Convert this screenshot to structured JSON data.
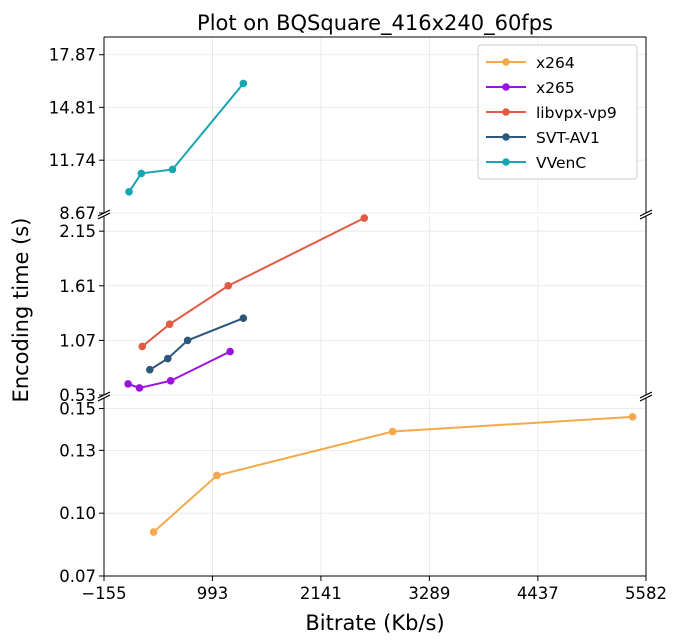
{
  "chart_data": {
    "type": "line",
    "title": "Plot on BQSquare_416x240_60fps",
    "xlabel": "Bitrate (Kb/s)",
    "ylabel": "Encoding time (s)",
    "xlim": [
      -155,
      5582
    ],
    "x_ticks": [
      "−155",
      "993",
      "2141",
      "3289",
      "4437",
      "5582"
    ],
    "x_tick_values": [
      -155,
      993,
      2141,
      3289,
      4437,
      5582
    ],
    "broken_y_axis": true,
    "grid": true,
    "legend_position": "top-right",
    "panels": [
      {
        "name": "top",
        "ylim": [
          8.67,
          18.9
        ],
        "y_ticks": [
          "8.67",
          "11.74",
          "14.81",
          "17.87"
        ],
        "y_tick_values": [
          8.67,
          11.74,
          14.81,
          17.87
        ]
      },
      {
        "name": "middle",
        "ylim": [
          0.53,
          2.3
        ],
        "y_ticks": [
          "0.53",
          "1.07",
          "1.61",
          "2.15"
        ],
        "y_tick_values": [
          0.53,
          1.07,
          1.61,
          2.15
        ]
      },
      {
        "name": "bottom",
        "ylim": [
          0.07,
          0.155
        ],
        "y_ticks": [
          "0.07",
          "0.10",
          "0.13",
          "0.15"
        ],
        "y_tick_values": [
          0.07,
          0.1,
          0.13,
          0.15
        ]
      }
    ],
    "series": [
      {
        "name": "x264",
        "color": "#f5a94a",
        "panel": "bottom",
        "points": [
          [
            370,
            0.091
          ],
          [
            1040,
            0.118
          ],
          [
            2900,
            0.139
          ],
          [
            5440,
            0.146
          ]
        ]
      },
      {
        "name": "x265",
        "color": "#9b12de",
        "panel": "middle",
        "points": [
          [
            100,
            0.64
          ],
          [
            220,
            0.6
          ],
          [
            550,
            0.67
          ],
          [
            1180,
            0.96
          ]
        ]
      },
      {
        "name": "libvpx-vp9",
        "color": "#e25a44",
        "panel": "middle",
        "points": [
          [
            250,
            1.01
          ],
          [
            540,
            1.23
          ],
          [
            1160,
            1.61
          ],
          [
            2600,
            2.28
          ]
        ]
      },
      {
        "name": "SVT-AV1",
        "color": "#2d577a",
        "panel": "middle",
        "points": [
          [
            330,
            0.78
          ],
          [
            520,
            0.89
          ],
          [
            730,
            1.07
          ],
          [
            1320,
            1.29
          ]
        ]
      },
      {
        "name": "VVenC",
        "color": "#17a5b1",
        "panel": "top",
        "points": [
          [
            110,
            9.9
          ],
          [
            240,
            10.97
          ],
          [
            570,
            11.2
          ],
          [
            1320,
            16.2
          ]
        ]
      }
    ]
  }
}
